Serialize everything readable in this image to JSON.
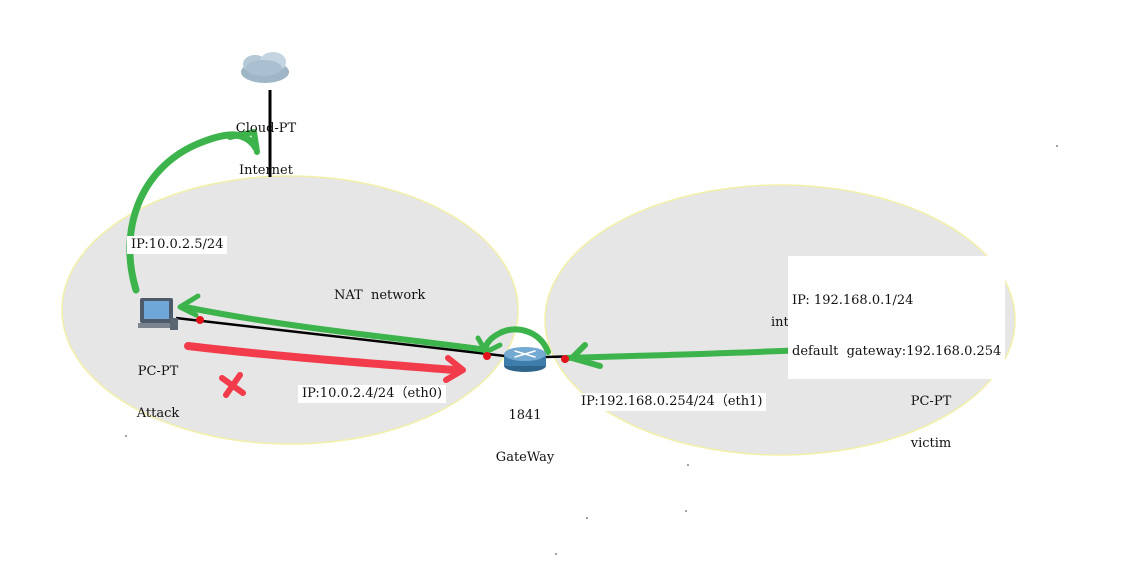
{
  "devices": {
    "cloud": {
      "line1": "Cloud-PT",
      "line2": "Internet"
    },
    "attacker": {
      "line1": "PC-PT",
      "line2": "Attack"
    },
    "router": {
      "line1": "1841",
      "line2": "GateWay"
    },
    "victim": {
      "line1": "PC-PT",
      "line2": "victim"
    }
  },
  "networks": {
    "nat": "NAT  network",
    "internal": "internal"
  },
  "addresses": {
    "attacker_ip": "IP:10.0.2.5/24",
    "gateway_eth0": "IP:10.0.2.4/24（eth0)",
    "gateway_eth1": "IP:192.168.0.254/24（eth1)",
    "victim_ip": "IP: 192.168.0.1/24",
    "victim_gateway": "default  gateway:192.168.0.254"
  },
  "colors": {
    "zone_fill": "#e6e6e6",
    "zone_stroke": "#f2f0a8",
    "link": "#000000",
    "link_dot": "#e0141a",
    "allowed_path": "#3cb44b",
    "blocked_path": "#f23c4b",
    "blocked_mark": "#f23c4b"
  },
  "icons": {
    "cloud": "cloud-icon",
    "attacker": "pc-icon",
    "router": "router-icon",
    "victim": "pc-icon",
    "blocked": "x-cross-icon"
  }
}
